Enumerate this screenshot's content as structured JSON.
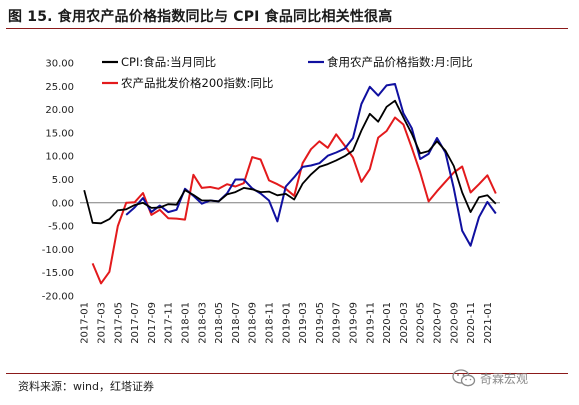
{
  "figure": {
    "title": "图 15. 食用农产品价格指数同比与 CPI 食品同比相关性很高",
    "source": "资料来源：wind，红塔证券",
    "watermark": "奇霖宏观"
  },
  "colors": {
    "cpi_food": "#000000",
    "agri_price_index": "#1010a0",
    "wholesale_200": "#e31a1c",
    "title_rule": "#8b1a1a"
  },
  "chart_data": {
    "type": "line",
    "title": "",
    "xlabel": "",
    "ylabel": "",
    "ylim": [
      -20,
      30
    ],
    "yticks": [
      "30.00",
      "25.00",
      "20.00",
      "15.00",
      "10.00",
      "5.00",
      "0.00",
      "-5.00",
      "-10.00",
      "-15.00",
      "-20.00"
    ],
    "ytick_values": [
      30,
      25,
      20,
      15,
      10,
      5,
      0,
      -5,
      -10,
      -15,
      -20
    ],
    "grid": false,
    "legend": "top",
    "x": [
      "2017-01",
      "2017-02",
      "2017-03",
      "2017-04",
      "2017-05",
      "2017-06",
      "2017-07",
      "2017-08",
      "2017-09",
      "2017-10",
      "2017-11",
      "2017-12",
      "2018-01",
      "2018-02",
      "2018-03",
      "2018-04",
      "2018-05",
      "2018-06",
      "2018-07",
      "2018-08",
      "2018-09",
      "2018-10",
      "2018-11",
      "2018-12",
      "2019-01",
      "2019-02",
      "2019-03",
      "2019-04",
      "2019-05",
      "2019-06",
      "2019-07",
      "2019-08",
      "2019-09",
      "2019-10",
      "2019-11",
      "2019-12",
      "2020-01",
      "2020-02",
      "2020-03",
      "2020-04",
      "2020-05",
      "2020-06",
      "2020-07",
      "2020-08",
      "2020-09",
      "2020-10",
      "2020-11",
      "2020-12",
      "2021-01",
      "2021-02"
    ],
    "xtick_labels": [
      "2017-01",
      "2017-03",
      "2017-05",
      "2017-07",
      "2017-09",
      "2017-11",
      "2018-01",
      "2018-03",
      "2018-05",
      "2018-07",
      "2018-09",
      "2018-11",
      "2019-01",
      "2019-03",
      "2019-05",
      "2019-07",
      "2019-09",
      "2019-11",
      "2020-01",
      "2020-03",
      "2020-05",
      "2020-07",
      "2020-09",
      "2020-11",
      "2021-01"
    ],
    "series": [
      {
        "name": "CPI:食品:当月同比",
        "color_key": "cpi_food",
        "values": [
          2.7,
          -4.3,
          -4.4,
          -3.5,
          -1.6,
          -1.4,
          -0.5,
          0.0,
          -1.1,
          -1.0,
          -0.3,
          -0.4,
          2.7,
          1.7,
          0.5,
          0.5,
          0.3,
          1.8,
          2.3,
          3.2,
          2.9,
          2.3,
          2.4,
          1.6,
          1.9,
          0.7,
          4.1,
          6.1,
          7.7,
          8.3,
          9.1,
          10.0,
          11.2,
          15.5,
          19.1,
          17.4,
          20.6,
          21.9,
          18.3,
          14.8,
          10.6,
          11.1,
          13.2,
          11.2,
          7.9,
          2.2,
          -2.0,
          1.2,
          1.6,
          -0.2
        ]
      },
      {
        "name": "食用农产品价格指数:月:同比",
        "color_key": "agri_price_index",
        "values": [
          null,
          null,
          null,
          null,
          null,
          -2.6,
          -1.0,
          1.0,
          -2.0,
          -0.6,
          -2.0,
          -1.5,
          3.0,
          1.5,
          -0.2,
          0.5,
          0.3,
          2.0,
          5.0,
          5.0,
          3.1,
          2.0,
          0.5,
          -4.0,
          3.5,
          5.5,
          7.7,
          8.0,
          8.5,
          10.1,
          10.8,
          11.6,
          13.9,
          21.2,
          24.9,
          23.0,
          25.2,
          25.5,
          19.2,
          16.0,
          9.4,
          10.5,
          13.9,
          10.8,
          3.1,
          -6.0,
          -9.2,
          -3.1,
          0.2,
          -2.3
        ]
      },
      {
        "name": "农产品批发价格200指数:同比",
        "color_key": "wholesale_200",
        "values": [
          null,
          -13.0,
          -17.3,
          -14.8,
          -5.0,
          0.0,
          0.1,
          2.1,
          -2.6,
          -1.5,
          -3.3,
          -3.4,
          -3.6,
          6.0,
          3.2,
          3.4,
          3.0,
          4.0,
          3.5,
          4.2,
          9.8,
          9.3,
          4.8,
          4.0,
          3.0,
          1.5,
          8.5,
          11.5,
          13.2,
          11.8,
          14.7,
          12.3,
          9.7,
          4.5,
          7.2,
          14.0,
          15.4,
          18.3,
          16.8,
          11.8,
          6.5,
          0.3,
          2.5,
          4.5,
          6.5,
          7.8,
          2.2,
          4.0,
          5.9,
          2.0
        ]
      }
    ]
  }
}
